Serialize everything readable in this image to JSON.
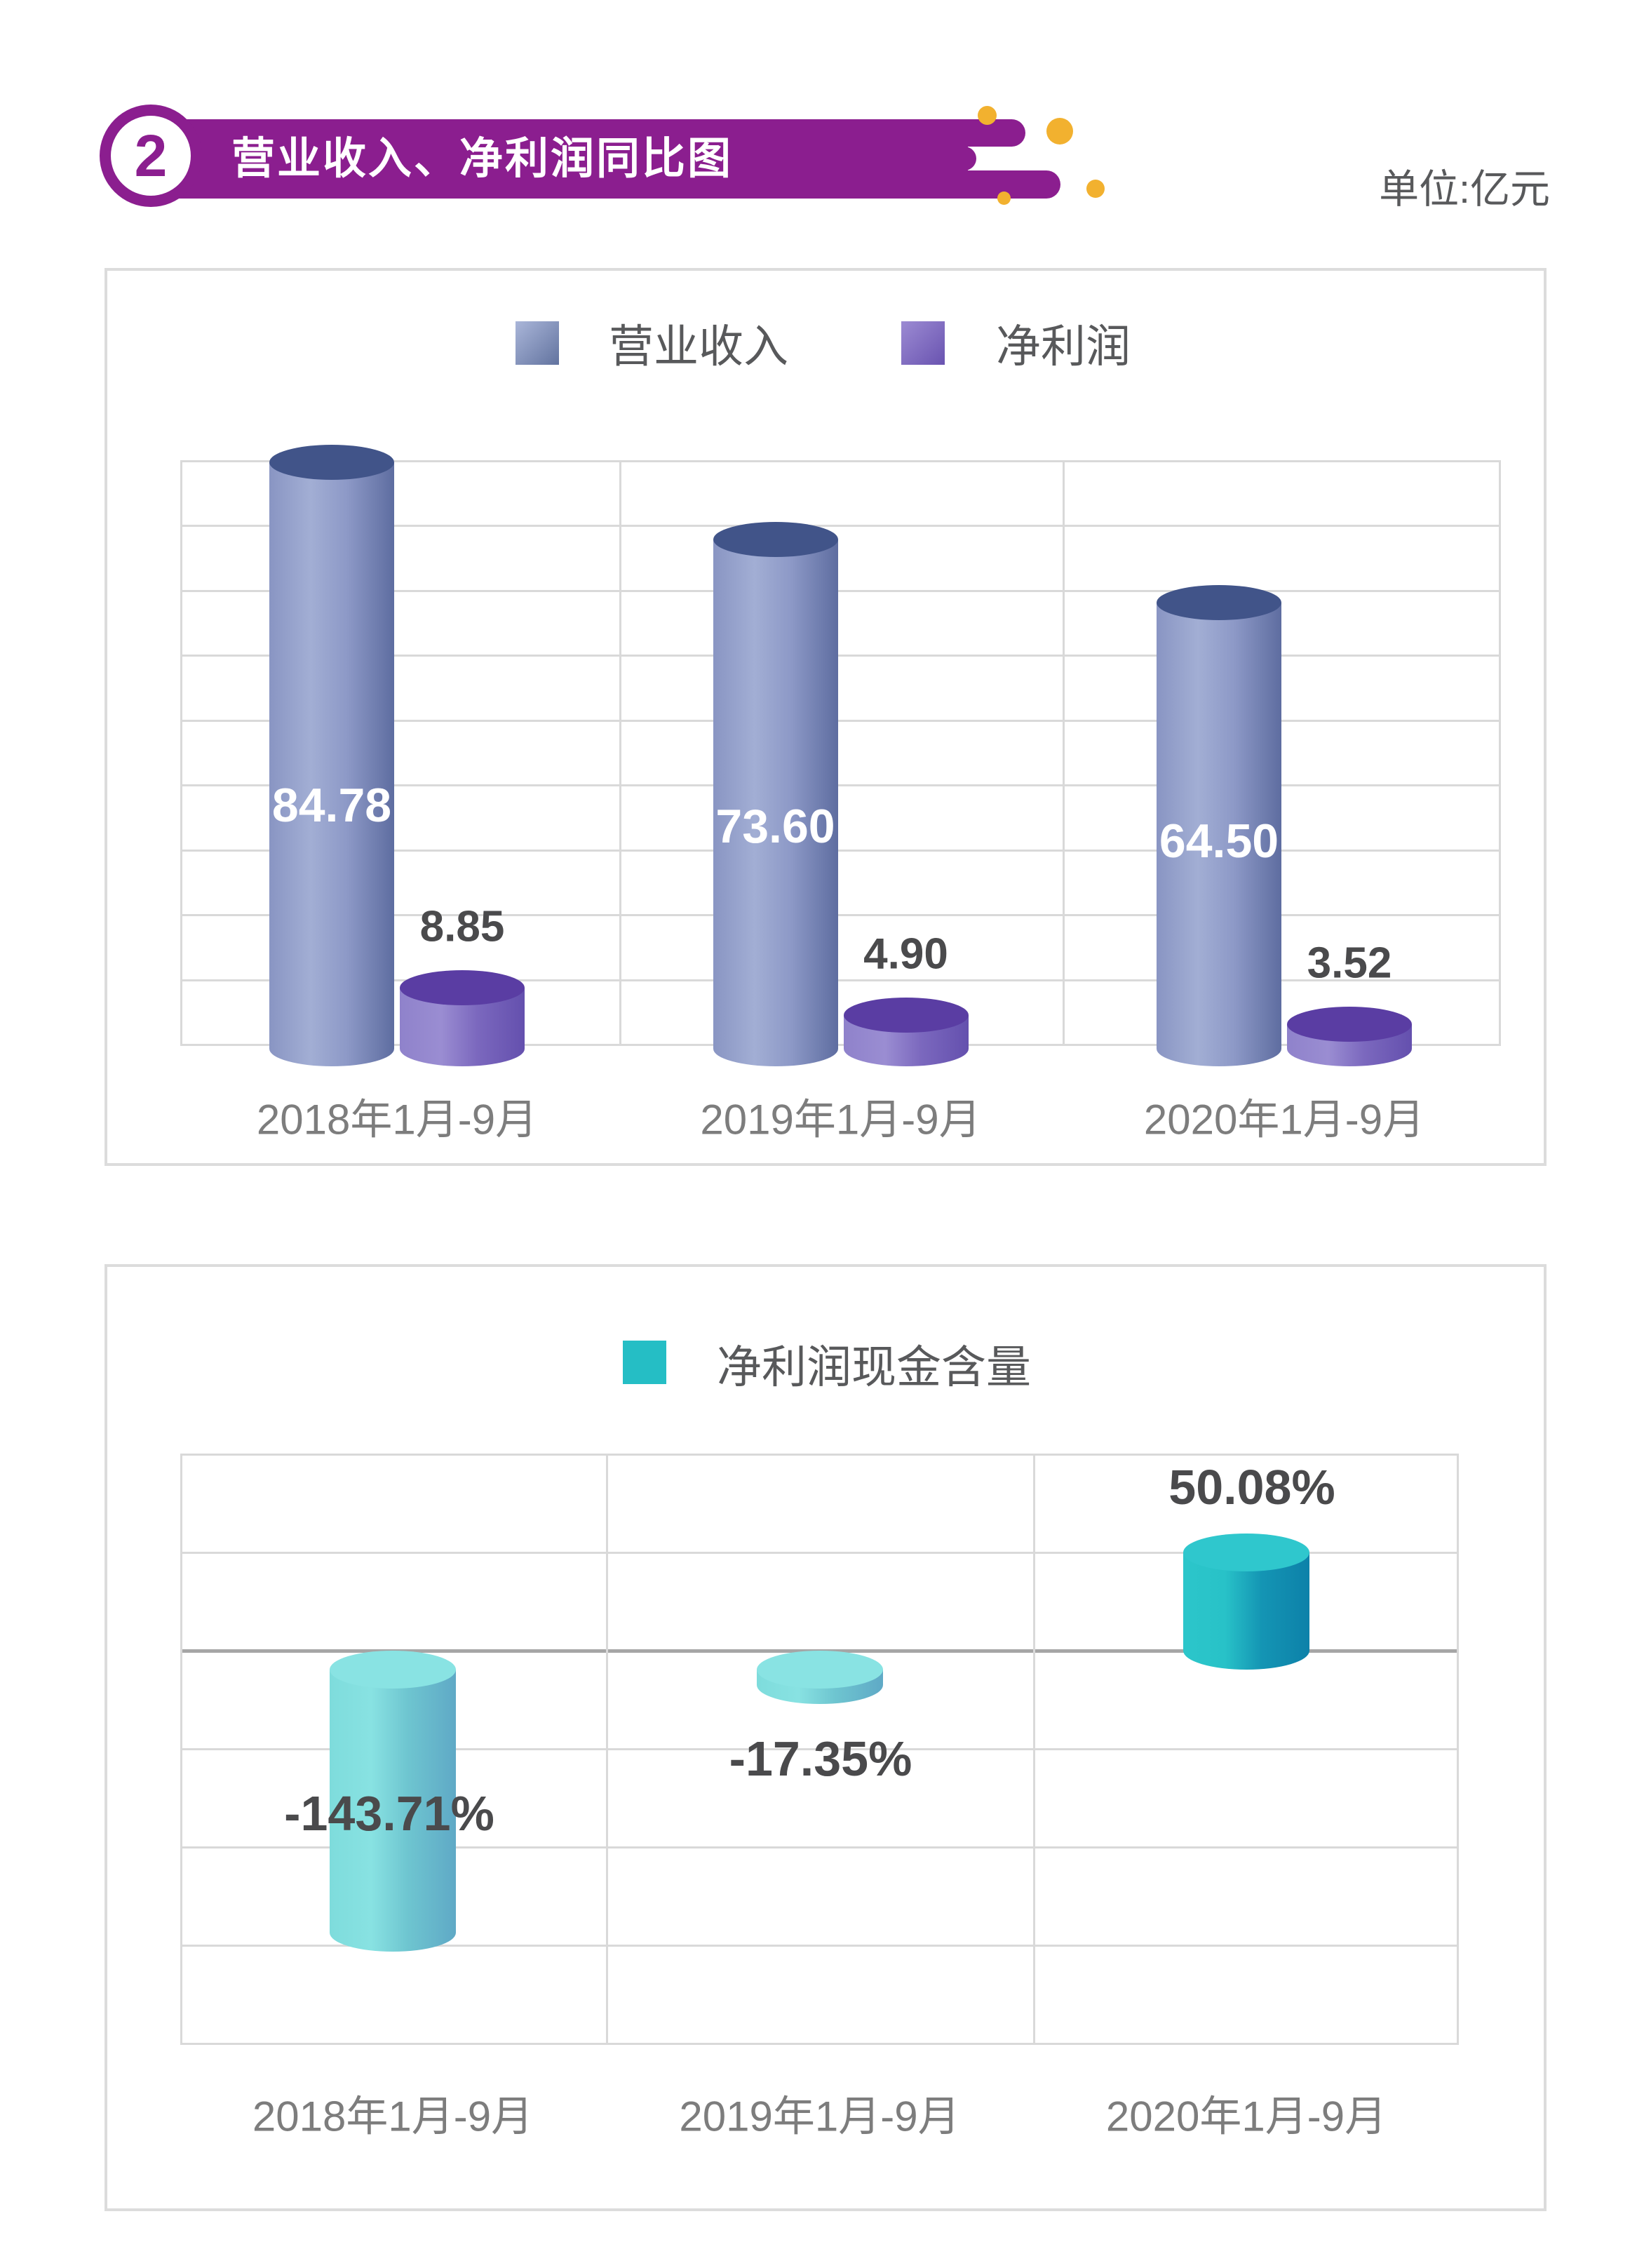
{
  "header": {
    "badge": "2",
    "title": "营业收入、净利润同比图",
    "unit_label": "单位:亿元"
  },
  "chart_data": [
    {
      "type": "bar",
      "name": "revenue-and-net-profit-yoy",
      "title": "营业收入、净利润同比图",
      "unit": "亿元",
      "categories": [
        "2018年1月-9月",
        "2019年1月-9月",
        "2020年1月-9月"
      ],
      "series": [
        {
          "name": "营业收入",
          "values": [
            84.78,
            73.6,
            64.5
          ],
          "labels": [
            "84.78",
            "73.60",
            "64.50"
          ]
        },
        {
          "name": "净利润",
          "values": [
            8.85,
            4.9,
            3.52
          ],
          "labels": [
            "8.85",
            "4.90",
            "3.52"
          ]
        }
      ],
      "ylim": [
        0,
        90
      ],
      "grid": true,
      "legend_position": "top"
    },
    {
      "type": "bar",
      "name": "net-profit-cash-content",
      "categories": [
        "2018年1月-9月",
        "2019年1月-9月",
        "2020年1月-9月"
      ],
      "series": [
        {
          "name": "净利润现金含量",
          "values": [
            -143.71,
            -17.35,
            50.08
          ],
          "labels": [
            "-143.71%",
            "-17.35%",
            "50.08%"
          ]
        }
      ],
      "ylim": [
        -200,
        100
      ],
      "grid": true,
      "legend_position": "top",
      "value_suffix": "%"
    }
  ],
  "colors": {
    "banner_purple": "#8b1e8f",
    "dot_yellow": "#f2b12f",
    "box_border": "#dcdcdc",
    "grid_line": "#d9d9d9",
    "zero_line": "#a6a6a6",
    "text_gray": "#58595b",
    "axis_label_gray": "#7d7d7d",
    "value_dark": "#4a4a4c",
    "revenue_body": [
      "#8995c3",
      "#a2aed4",
      "#8d99c7",
      "#5e6da0"
    ],
    "revenue_cap": "#415489",
    "profit_body": [
      "#8f82cb",
      "#9a8dd2",
      "#7b68be",
      "#6450ae"
    ],
    "profit_cap": "#5a3da3",
    "cash_negative_body": [
      "#7edcdc",
      "#88e2e2",
      "#6ec5d0",
      "#5fa9c6"
    ],
    "cash_negative_cap": "#89e3e3",
    "cash_positive_body": [
      "#2cc6ca",
      "#28c2c8",
      "#1495b4",
      "#0d81a9"
    ],
    "cash_positive_cap": "#2fc7cd",
    "legend_revenue": [
      "#aab6d9",
      "#62739f"
    ],
    "legend_profit": [
      "#9c8bd3",
      "#6953b0"
    ],
    "legend_cash": "#25bec5"
  }
}
